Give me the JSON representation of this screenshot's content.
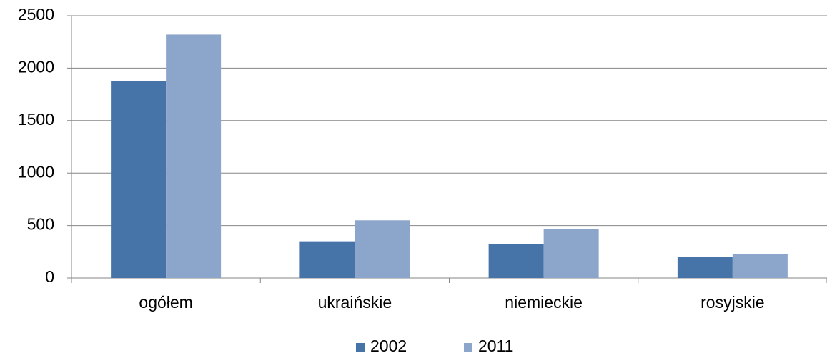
{
  "chart_data": {
    "type": "bar",
    "categories": [
      "ogółem",
      "ukraińskie",
      "niemieckie",
      "rosyjskie"
    ],
    "series": [
      {
        "name": "2002",
        "color": "#4674a8",
        "values": [
          1875,
          350,
          325,
          200
        ]
      },
      {
        "name": "2011",
        "color": "#8ba5cb",
        "values": [
          2320,
          550,
          465,
          225
        ]
      }
    ],
    "ylim": [
      0,
      2500
    ],
    "yticks": [
      0,
      500,
      1000,
      1500,
      2000,
      2500
    ],
    "grid": true,
    "legend": "bottom"
  }
}
